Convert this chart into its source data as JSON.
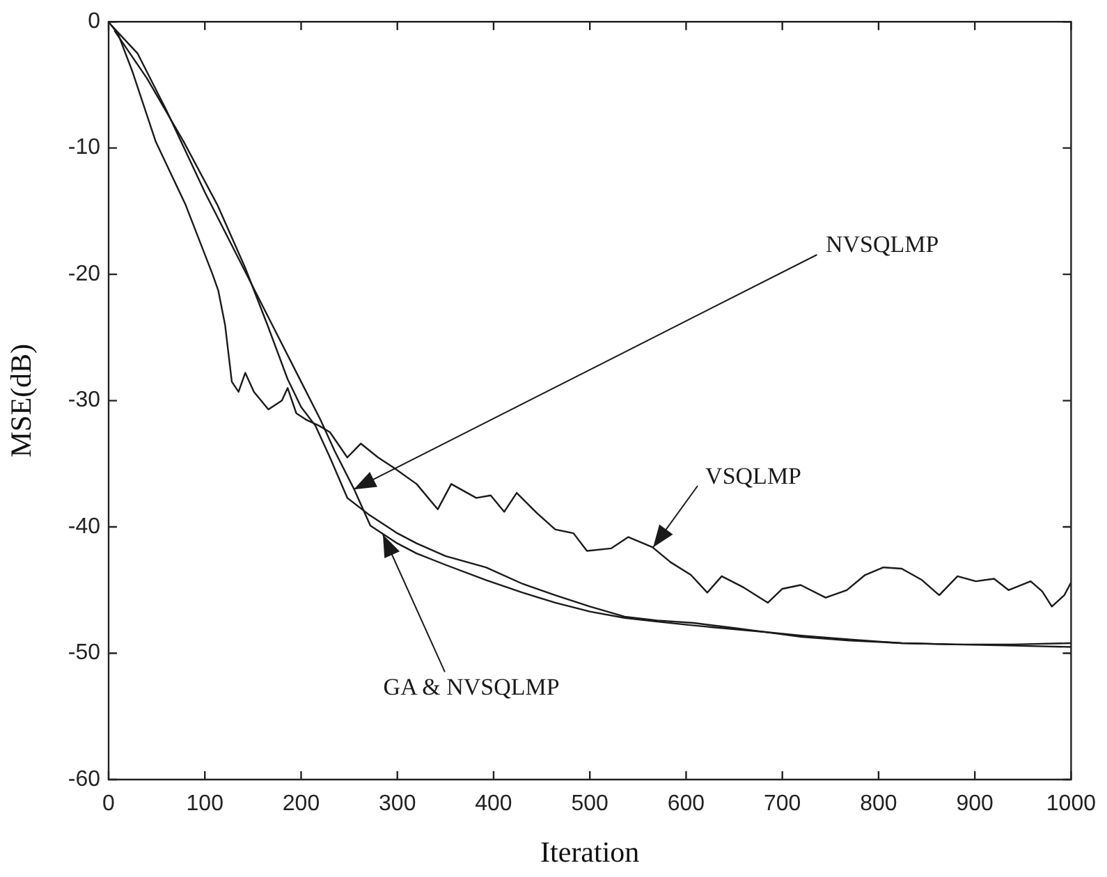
{
  "chart_data": {
    "type": "line",
    "xlabel": "Iteration",
    "ylabel": "MSE(dB)",
    "xlim": [
      0,
      1000
    ],
    "xticks": [
      0,
      100,
      200,
      300,
      400,
      500,
      600,
      700,
      800,
      900,
      1000
    ],
    "ylim": [
      -60,
      0
    ],
    "yticks": [
      -60,
      -50,
      -40,
      -30,
      -20,
      -10,
      0
    ],
    "grid": false,
    "legend": false,
    "marker": "none",
    "line_style": "solid",
    "series": [
      {
        "color": "#1a1a1a",
        "x": [
          0,
          10,
          25,
          49,
          80,
          108,
          114,
          121,
          128,
          135,
          142,
          151,
          166,
          180,
          186,
          195,
          205,
          219,
          230,
          248,
          262,
          280,
          296,
          320,
          342,
          356,
          382,
          397,
          411,
          424,
          445,
          464,
          483,
          497,
          522,
          540,
          565,
          584,
          605,
          622,
          637,
          660,
          685,
          700,
          719,
          745,
          767,
          786,
          805,
          824,
          845,
          863,
          882,
          901,
          920,
          935,
          958,
          970,
          980,
          993,
          1000
        ],
        "values": [
          0,
          -1,
          -4,
          -9.5,
          -14.5,
          -20,
          -21.3,
          -24,
          -28.5,
          -29.3,
          -27.8,
          -29.3,
          -30.7,
          -30,
          -29,
          -31,
          -31.5,
          -32,
          -32.5,
          -34.5,
          -33.4,
          -34.5,
          -35.3,
          -36.6,
          -38.6,
          -36.6,
          -37.7,
          -37.5,
          -38.8,
          -37.3,
          -38.9,
          -40.2,
          -40.5,
          -41.9,
          -41.7,
          -40.8,
          -41.6,
          -42.8,
          -43.8,
          -45.2,
          -43.9,
          -44.8,
          -46,
          -44.9,
          -44.6,
          -45.6,
          -45,
          -43.8,
          -43.2,
          -43.3,
          -44.2,
          -45.4,
          -43.9,
          -44.3,
          -44.1,
          -45,
          -44.3,
          -45.1,
          -46.3,
          -45.4,
          -44.4
        ]
      },
      {
        "color": "#1a1a1a",
        "x": [
          3,
          30,
          60,
          100,
          140,
          160,
          180,
          200,
          220,
          235,
          255,
          272,
          300,
          320,
          350,
          392,
          430,
          464,
          500,
          536,
          570,
          608,
          650,
          680,
          720,
          770,
          824,
          880,
          940,
          1000
        ],
        "values": [
          -0.3,
          -2.5,
          -7,
          -13.5,
          -19.5,
          -22.5,
          -25.5,
          -28.5,
          -31.5,
          -34,
          -37,
          -39.9,
          -41.3,
          -42.1,
          -43,
          -44.2,
          -45.2,
          -46,
          -46.7,
          -47.2,
          -47.5,
          -47.8,
          -48.1,
          -48.3,
          -48.6,
          -48.9,
          -49.2,
          -49.3,
          -49.3,
          -49.2
        ]
      },
      {
        "color": "#1a1a1a",
        "x": [
          6,
          40,
          78,
          113,
          142,
          165,
          186,
          200,
          215,
          230,
          248,
          270,
          300,
          320,
          350,
          392,
          430,
          464,
          500,
          536,
          570,
          608,
          650,
          680,
          720,
          770,
          824,
          880,
          940,
          1000
        ],
        "values": [
          -0.7,
          -4.5,
          -9.5,
          -14.5,
          -19.5,
          -24,
          -28.3,
          -30.5,
          -32,
          -34.5,
          -37.7,
          -39,
          -40.5,
          -41.3,
          -42.3,
          -43.2,
          -44.5,
          -45.4,
          -46.3,
          -47.1,
          -47.4,
          -47.6,
          -48,
          -48.3,
          -48.7,
          -49,
          -49.2,
          -49.3,
          -49.4,
          -49.5
        ]
      }
    ],
    "annotations": [
      {
        "text": "NVSQLMP",
        "x": 255,
        "y": -37
      },
      {
        "text": "VSQLMP",
        "x": 565,
        "y": -41.6
      },
      {
        "text": "GA & NVSQLMP",
        "x": 285,
        "y": -40.6
      }
    ]
  }
}
